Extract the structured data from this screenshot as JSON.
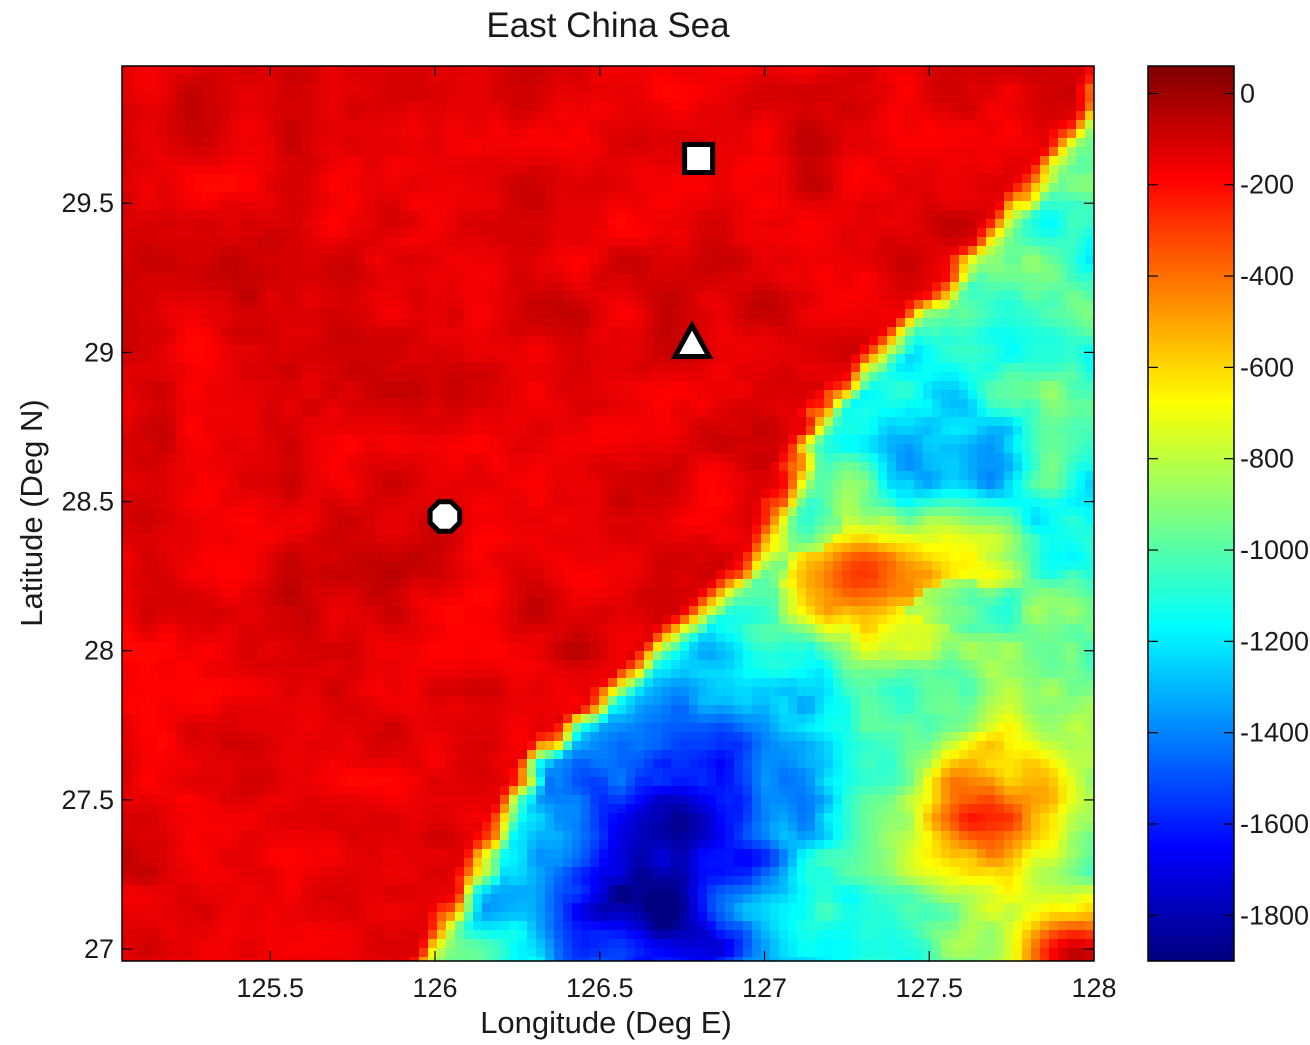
{
  "chart_data": {
    "type": "heatmap",
    "title": "East China Sea",
    "xlabel": "Longitude (Deg E)",
    "ylabel": "Latitude (Deg N)",
    "xlim": [
      125.05,
      128.0
    ],
    "ylim": [
      26.96,
      29.96
    ],
    "x_ticks": [
      125.5,
      126,
      126.5,
      127,
      127.5,
      128
    ],
    "x_tick_labels": [
      "125.5",
      "126",
      "126.5",
      "127",
      "127.5",
      "128"
    ],
    "y_ticks": [
      27,
      27.5,
      28,
      28.5,
      29,
      29.5
    ],
    "y_tick_labels": [
      "27",
      "27.5",
      "28",
      "28.5",
      "29",
      "29.5"
    ],
    "colorbar": {
      "colormap": "jet",
      "range": [
        -1900,
        60
      ],
      "ticks": [
        0,
        -200,
        -400,
        -600,
        -800,
        -1000,
        -1200,
        -1400,
        -1600,
        -1800
      ],
      "tick_labels": [
        "0",
        "-200",
        "-400",
        "-600",
        "-800",
        "-1000",
        "-1200",
        "-1400",
        "-1600",
        "-1800"
      ]
    },
    "field": {
      "shelf_depth": -130,
      "shelf_edge": [
        [
          127.95,
          29.85
        ],
        [
          127.55,
          29.3
        ],
        [
          127.1,
          28.8
        ],
        [
          126.9,
          28.3
        ],
        [
          126.6,
          28.0
        ],
        [
          126.2,
          27.6
        ],
        [
          126.1,
          27.35
        ],
        [
          125.9,
          26.96
        ]
      ],
      "basin_min": {
        "lon": 126.65,
        "lat": 27.2,
        "depth": -1850
      },
      "deep_spot": {
        "lon": 126.95,
        "lat": 27.7,
        "depth": -1700
      },
      "shallow_sw": {
        "lon": 127.95,
        "lat": 26.97,
        "depth": -50
      }
    },
    "markers": [
      {
        "name": "square",
        "lon": 126.8,
        "lat": 29.65
      },
      {
        "name": "triangle",
        "lon": 126.78,
        "lat": 29.03
      },
      {
        "name": "octagon",
        "lon": 126.03,
        "lat": 28.45
      }
    ],
    "grid": false
  }
}
